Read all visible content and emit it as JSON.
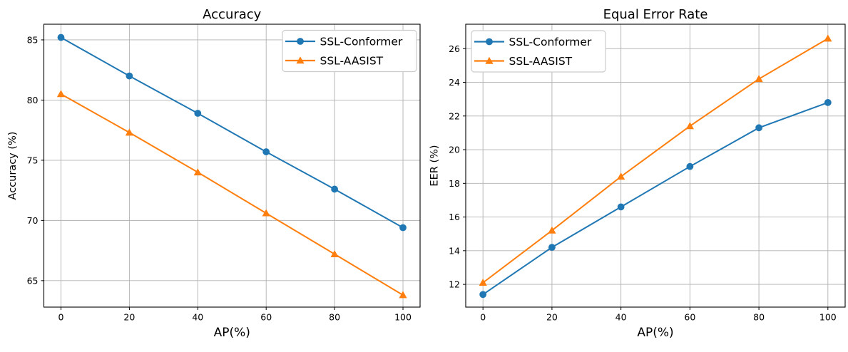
{
  "figure": {
    "background": "#ffffff",
    "grid_color": "#b0b0b0",
    "spine_color": "#000000",
    "legend_border_color": "#cccccc",
    "legend_background": "#ffffff"
  },
  "chart_data": [
    {
      "type": "line",
      "title": "Accuracy",
      "xlabel": "AP(%)",
      "ylabel": "Accuracy (%)",
      "x": [
        0,
        20,
        40,
        60,
        80,
        100
      ],
      "xticks": [
        0,
        20,
        40,
        60,
        80,
        100
      ],
      "yticks": [
        65,
        70,
        75,
        80,
        85
      ],
      "xlim": [
        -5,
        105
      ],
      "ylim": [
        62.8,
        86.3
      ],
      "grid": true,
      "legend_position": "upper-right",
      "series": [
        {
          "name": "SSL-Conformer",
          "color": "#1f77b4",
          "marker": "circle",
          "values": [
            85.2,
            82.0,
            78.9,
            75.7,
            72.6,
            69.4
          ]
        },
        {
          "name": "SSL-AASIST",
          "color": "#ff7f0e",
          "marker": "triangle",
          "values": [
            80.5,
            77.3,
            74.0,
            70.6,
            67.2,
            63.8
          ]
        }
      ]
    },
    {
      "type": "line",
      "title": "Equal Error Rate",
      "xlabel": "AP(%)",
      "ylabel": "EER (%)",
      "x": [
        0,
        20,
        40,
        60,
        80,
        100
      ],
      "xticks": [
        0,
        20,
        40,
        60,
        80,
        100
      ],
      "yticks": [
        12,
        14,
        16,
        18,
        20,
        22,
        24,
        26
      ],
      "xlim": [
        -5,
        105
      ],
      "ylim": [
        10.65,
        27.45
      ],
      "grid": true,
      "legend_position": "upper-left",
      "series": [
        {
          "name": "SSL-Conformer",
          "color": "#1f77b4",
          "marker": "circle",
          "values": [
            11.4,
            14.2,
            16.6,
            19.0,
            21.3,
            22.8
          ]
        },
        {
          "name": "SSL-AASIST",
          "color": "#ff7f0e",
          "marker": "triangle",
          "values": [
            12.1,
            15.2,
            18.4,
            21.4,
            24.2,
            26.6
          ]
        }
      ]
    }
  ]
}
